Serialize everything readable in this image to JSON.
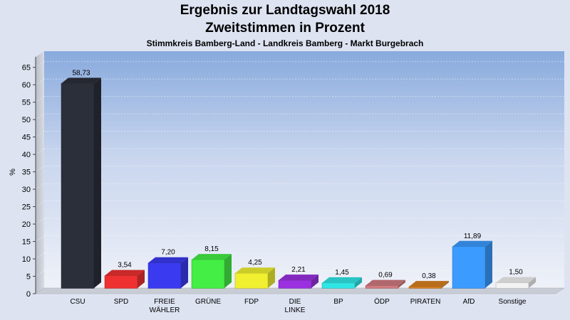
{
  "chart_data": {
    "type": "bar",
    "title": "Ergebnis zur Landtagswahl 2018",
    "subtitle": "Zweitstimmen in Prozent",
    "subtitle2": "Stimmkreis Bamberg-Land - Landkreis Bamberg - Markt Burgebrach",
    "ylabel": "%",
    "ylim": [
      0,
      68
    ],
    "yticks": [
      0,
      5,
      10,
      15,
      20,
      25,
      30,
      35,
      40,
      45,
      50,
      55,
      60,
      65
    ],
    "grid": true,
    "categories": [
      [
        "CSU"
      ],
      [
        "SPD"
      ],
      [
        "FREIE",
        "WÄHLER"
      ],
      [
        "GRÜNE"
      ],
      [
        "FDP"
      ],
      [
        "DIE",
        "LINKE"
      ],
      [
        "BP"
      ],
      [
        "ÖDP"
      ],
      [
        "PIRATEN"
      ],
      [
        "AfD"
      ],
      [
        "Sonstige"
      ]
    ],
    "values": [
      58.73,
      3.54,
      7.2,
      8.15,
      4.25,
      2.21,
      1.45,
      0.69,
      0.38,
      11.89,
      1.5
    ],
    "value_labels": [
      "58,73",
      "3,54",
      "7,20",
      "8,15",
      "4,25",
      "2,21",
      "1,45",
      "0,69",
      "0,38",
      "11,89",
      "1,50"
    ],
    "colors": [
      "#2b2f3a",
      "#ee3030",
      "#3a3af0",
      "#44ee44",
      "#f0f030",
      "#9a30e0",
      "#30e6e6",
      "#d07a80",
      "#d88020",
      "#3b9bff",
      "#f2f2f2"
    ]
  }
}
